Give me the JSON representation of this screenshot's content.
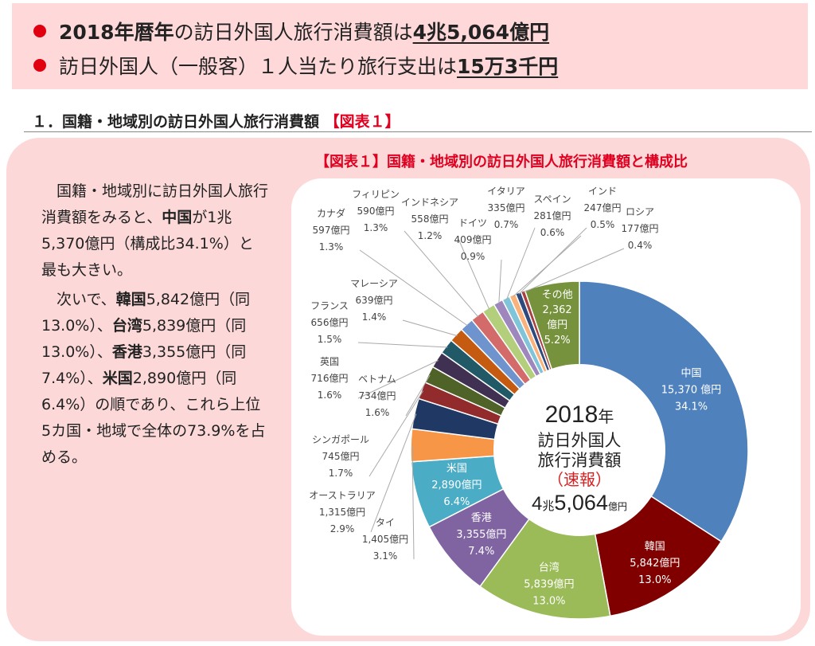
{
  "banner": {
    "line1": {
      "bold_part": "2018年暦年",
      "middle": "の訪日外国人旅行消費額は",
      "value": "4兆5,064億円"
    },
    "line2": {
      "text": "訪日外国人（一般客）１人当たり旅行支出は",
      "value": "15万3千円"
    }
  },
  "section": {
    "heading": "１．国籍・地域別の訪日外国人旅行消費額",
    "figure_ref": "【図表１】"
  },
  "chart_title": "【図表１】国籍・地域別の訪日外国人旅行消費額と構成比",
  "paragraph1": {
    "p1": "国籍・地域別に訪日外国人旅行消費額をみると、",
    "country": "中国",
    "p2": "が1兆5,370億円（構成比34.1%）と最も大きい。"
  },
  "paragraph2": {
    "p1": "次いで、",
    "c1": "韓国",
    "p2": "5,842億円（同13.0%）、",
    "c2": "台湾",
    "p3": "5,839億円（同13.0%）、",
    "c3": "香港",
    "p4": "3,355億円（同7.4%）、",
    "c4": "米国",
    "p5": "2,890億円（同6.4%）の順であり、これら上位5カ国・地域で全体の73.9%を占める。"
  },
  "center": {
    "year": "2018",
    "year_unit": "年",
    "line1": "訪日外国人",
    "line2": "旅行消費額",
    "line3": "（速報）",
    "cho": "4",
    "cho_unit": "兆",
    "amount": "5,064",
    "amount_unit": "億円"
  },
  "chart_data": {
    "type": "pie",
    "title": "国籍・地域別の訪日外国人旅行消費額と構成比",
    "center_total": "4兆5,064億円",
    "slices": [
      {
        "name": "中国",
        "value": 15370,
        "value_label": "15,370 億円",
        "share_label": "34.1%",
        "color": "#4f81bd"
      },
      {
        "name": "韓国",
        "value": 5842,
        "value_label": "5,842億円",
        "share_label": "13.0%",
        "color": "#800000"
      },
      {
        "name": "台湾",
        "value": 5839,
        "value_label": "5,839億円",
        "share_label": "13.0%",
        "color": "#9bbb59"
      },
      {
        "name": "香港",
        "value": 3355,
        "value_label": "3,355億円",
        "share_label": "7.4%",
        "color": "#8064a2"
      },
      {
        "name": "米国",
        "value": 2890,
        "value_label": "2,890億円",
        "share_label": "6.4%",
        "color": "#4bacc6"
      },
      {
        "name": "タイ",
        "value": 1405,
        "value_label": "1,405億円",
        "share_label": "3.1%",
        "color": "#f79646"
      },
      {
        "name": "オーストラリア",
        "value": 1315,
        "value_label": "1,315億円",
        "share_label": "2.9%",
        "color": "#1f3864"
      },
      {
        "name": "シンガポール",
        "value": 745,
        "value_label": "745億円",
        "share_label": "1.7%",
        "color": "#922b2b"
      },
      {
        "name": "ベトナム",
        "value": 734,
        "value_label": "734億円",
        "share_label": "1.6%",
        "color": "#4f6228"
      },
      {
        "name": "英国",
        "value": 716,
        "value_label": "716億円",
        "share_label": "1.6%",
        "color": "#403152"
      },
      {
        "name": "フランス",
        "value": 656,
        "value_label": "656億円",
        "share_label": "1.5%",
        "color": "#215967"
      },
      {
        "name": "マレーシア",
        "value": 639,
        "value_label": "639億円",
        "share_label": "1.4%",
        "color": "#c55a11"
      },
      {
        "name": "カナダ",
        "value": 597,
        "value_label": "597億円",
        "share_label": "1.3%",
        "color": "#6f94cd"
      },
      {
        "name": "フィリピン",
        "value": 590,
        "value_label": "590億円",
        "share_label": "1.3%",
        "color": "#d46b6b"
      },
      {
        "name": "インドネシア",
        "value": 558,
        "value_label": "558億円",
        "share_label": "1.2%",
        "color": "#b3cf7c"
      },
      {
        "name": "ドイツ",
        "value": 409,
        "value_label": "409億円",
        "share_label": "0.9%",
        "color": "#9d87bd"
      },
      {
        "name": "イタリア",
        "value": 335,
        "value_label": "335億円",
        "share_label": "0.7%",
        "color": "#7fc4d9"
      },
      {
        "name": "スペイン",
        "value": 281,
        "value_label": "281億円",
        "share_label": "0.6%",
        "color": "#fab27d"
      },
      {
        "name": "インド",
        "value": 247,
        "value_label": "247億円",
        "share_label": "0.5%",
        "color": "#2e4a7d"
      },
      {
        "name": "ロシア",
        "value": 177,
        "value_label": "177億円",
        "share_label": "0.4%",
        "color": "#a93f3f"
      },
      {
        "name": "その他",
        "value": 2362,
        "value_label": "2,362億円",
        "share_label": "5.2%",
        "color": "#76923c"
      }
    ]
  }
}
